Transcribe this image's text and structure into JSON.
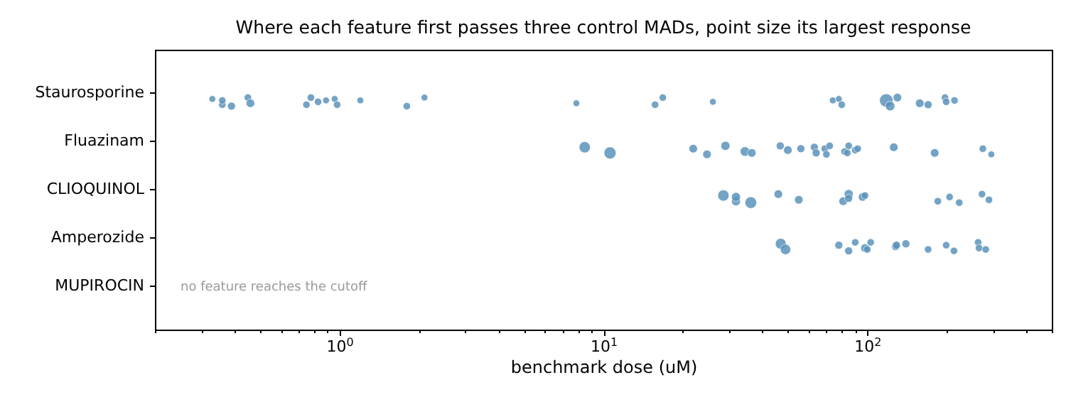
{
  "chart_data": {
    "type": "bubble",
    "orientation": "horizontal",
    "title": "Where each feature first passes three control MADs, point size its largest response",
    "xlabel": "benchmark dose (uM)",
    "categories": [
      "Staurosporine",
      "Fluazinam",
      "CLIOQUINOL",
      "Amperozide",
      "MUPIROCIN"
    ],
    "log": "x",
    "grid": false,
    "xlim": [
      0.2,
      500
    ],
    "xticks": [
      {
        "value": 0.2,
        "label": null
      },
      {
        "value": 0.3,
        "label": null
      },
      {
        "value": 0.4,
        "label": null
      },
      {
        "value": 0.5,
        "label": null
      },
      {
        "value": 0.6,
        "label": null
      },
      {
        "value": 0.7,
        "label": null
      },
      {
        "value": 0.8,
        "label": null
      },
      {
        "value": 0.9,
        "label": null
      },
      {
        "value": 1,
        "label": "10$^{0}$"
      },
      {
        "value": 2,
        "label": null
      },
      {
        "value": 3,
        "label": null
      },
      {
        "value": 4,
        "label": null
      },
      {
        "value": 5,
        "label": null
      },
      {
        "value": 6,
        "label": null
      },
      {
        "value": 7,
        "label": null
      },
      {
        "value": 8,
        "label": null
      },
      {
        "value": 9,
        "label": null
      },
      {
        "value": 10,
        "label": "10$^{1}$"
      },
      {
        "value": 20,
        "label": null
      },
      {
        "value": 30,
        "label": null
      },
      {
        "value": 40,
        "label": null
      },
      {
        "value": 50,
        "label": null
      },
      {
        "value": 60,
        "label": null
      },
      {
        "value": 70,
        "label": null
      },
      {
        "value": 80,
        "label": null
      },
      {
        "value": 90,
        "label": null
      },
      {
        "value": 100,
        "label": "10$^{2}$"
      },
      {
        "value": 200,
        "label": null
      },
      {
        "value": 300,
        "label": null
      },
      {
        "value": 400,
        "label": null
      },
      {
        "value": 500,
        "label": null
      }
    ],
    "series": [
      {
        "color": "#5b93bb",
        "values": [
          0.33,
          0.36,
          0.36,
          0.39,
          0.45,
          0.46,
          0.75,
          0.78,
          0.83,
          0.89,
          0.96,
          0.98,
          1.2,
          1.8,
          2.1,
          7.9,
          15.7,
          16.8,
          26,
          74,
          78,
          80,
          118,
          122,
          130,
          158,
          170,
          197,
          199,
          214
        ],
        "x": [
          "Staurosporine",
          "Staurosporine",
          "Staurosporine",
          "Staurosporine",
          "Staurosporine",
          "Staurosporine",
          "Staurosporine",
          "Staurosporine",
          "Staurosporine",
          "Staurosporine",
          "Staurosporine",
          "Staurosporine",
          "Staurosporine",
          "Staurosporine",
          "Staurosporine",
          "Staurosporine",
          "Staurosporine",
          "Staurosporine",
          "Staurosporine",
          "Staurosporine",
          "Staurosporine",
          "Staurosporine",
          "Staurosporine",
          "Staurosporine",
          "Staurosporine",
          "Staurosporine",
          "Staurosporine",
          "Staurosporine",
          "Staurosporine",
          "Staurosporine"
        ],
        "sizes": [
          0.25,
          0.3,
          0.3,
          0.35,
          0.3,
          0.4,
          0.3,
          0.3,
          0.3,
          0.25,
          0.25,
          0.3,
          0.25,
          0.3,
          0.25,
          0.25,
          0.3,
          0.3,
          0.25,
          0.25,
          0.25,
          0.3,
          1,
          0.5,
          0.4,
          0.4,
          0.35,
          0.3,
          0.3,
          0.3
        ]
      },
      {
        "color": "#5b93bb",
        "values": [
          8.5,
          10.6,
          21.9,
          24.7,
          29,
          34.4,
          36.5,
          46.8,
          50,
          56,
          63,
          64,
          69,
          70,
          72,
          82,
          84,
          85,
          90,
          92,
          126,
          180,
          274,
          295
        ],
        "x": [
          "Fluazinam",
          "Fluazinam",
          "Fluazinam",
          "Fluazinam",
          "Fluazinam",
          "Fluazinam",
          "Fluazinam",
          "Fluazinam",
          "Fluazinam",
          "Fluazinam",
          "Fluazinam",
          "Fluazinam",
          "Fluazinam",
          "Fluazinam",
          "Fluazinam",
          "Fluazinam",
          "Fluazinam",
          "Fluazinam",
          "Fluazinam",
          "Fluazinam",
          "Fluazinam",
          "Fluazinam",
          "Fluazinam",
          "Fluazinam"
        ],
        "sizes": [
          0.7,
          0.8,
          0.4,
          0.4,
          0.45,
          0.5,
          0.4,
          0.35,
          0.4,
          0.35,
          0.35,
          0.35,
          0.3,
          0.3,
          0.3,
          0.3,
          0.3,
          0.3,
          0.3,
          0.3,
          0.4,
          0.4,
          0.3,
          0.25
        ]
      },
      {
        "color": "#5b93bb",
        "values": [
          28.5,
          31.8,
          31.8,
          36.2,
          46,
          55,
          81,
          85,
          85,
          96,
          98,
          185,
          205,
          223,
          272,
          289
        ],
        "x": [
          "CLIOQUINOL",
          "CLIOQUINOL",
          "CLIOQUINOL",
          "CLIOQUINOL",
          "CLIOQUINOL",
          "CLIOQUINOL",
          "CLIOQUINOL",
          "CLIOQUINOL",
          "CLIOQUINOL",
          "CLIOQUINOL",
          "CLIOQUINOL",
          "CLIOQUINOL",
          "CLIOQUINOL",
          "CLIOQUINOL",
          "CLIOQUINOL",
          "CLIOQUINOL"
        ],
        "sizes": [
          0.7,
          0.45,
          0.45,
          0.75,
          0.4,
          0.4,
          0.4,
          0.45,
          0.35,
          0.4,
          0.3,
          0.3,
          0.3,
          0.3,
          0.3,
          0.3
        ]
      },
      {
        "color": "#5b93bb",
        "values": [
          47,
          49,
          78,
          85,
          90,
          98,
          100,
          103,
          128,
          129,
          140,
          170,
          199,
          213,
          263,
          265,
          281
        ],
        "x": [
          "Amperozide",
          "Amperozide",
          "Amperozide",
          "Amperozide",
          "Amperozide",
          "Amperozide",
          "Amperozide",
          "Amperozide",
          "Amperozide",
          "Amperozide",
          "Amperozide",
          "Amperozide",
          "Amperozide",
          "Amperozide",
          "Amperozide",
          "Amperozide",
          "Amperozide"
        ],
        "sizes": [
          0.65,
          0.6,
          0.35,
          0.35,
          0.3,
          0.4,
          0.3,
          0.3,
          0.35,
          0.35,
          0.35,
          0.3,
          0.3,
          0.3,
          0.3,
          0.3,
          0.3
        ]
      }
    ],
    "annotations": [
      "no feature reaches the cutoff"
    ]
  }
}
